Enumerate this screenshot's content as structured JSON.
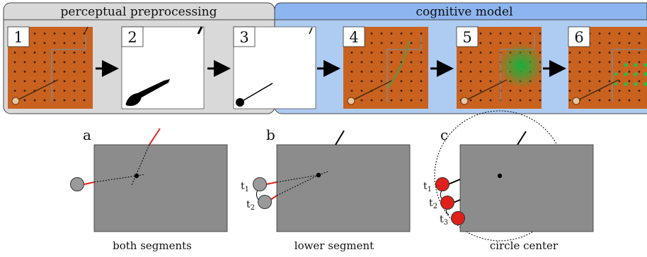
{
  "stages": {
    "left_title": "perceptual preprocessing",
    "right_title": "cognitive model"
  },
  "panels": [
    {
      "label": "1",
      "kind": "board"
    },
    {
      "label": "2",
      "kind": "mask"
    },
    {
      "label": "3",
      "kind": "fit"
    },
    {
      "label": "4",
      "kind": "trajectory"
    },
    {
      "label": "5",
      "kind": "heat"
    },
    {
      "label": "6",
      "kind": "grid"
    }
  ],
  "diagrams": [
    {
      "letter": "a",
      "caption": "both segments"
    },
    {
      "letter": "b",
      "caption": "lower segment",
      "labels": {
        "t1": "t",
        "t1_sub": "1",
        "t2": "t",
        "t2_sub": "2"
      }
    },
    {
      "letter": "c",
      "caption": "circle center",
      "labels": {
        "t1": "t",
        "t1_sub": "1",
        "t2": "t",
        "t2_sub": "2",
        "t3": "t",
        "t3_sub": "3"
      }
    }
  ],
  "colors": {
    "board": "#c9621f",
    "board_dark": "#a84e16",
    "preproc_bg": "#d9d9d9",
    "cog_bg": "#aecbf2",
    "cog_header": "#8db5ef",
    "gray_rect": "#8c8c8c",
    "red": "#e0201a",
    "green": "#1fb33a"
  },
  "icons": [
    "arrow-right-icon"
  ]
}
